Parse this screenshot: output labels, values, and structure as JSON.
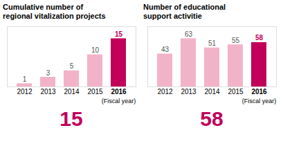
{
  "chart_data": [
    {
      "type": "bar",
      "title": "Cumulative number of\nregional vitalization projects",
      "categories": [
        "2012",
        "2013",
        "2014",
        "2015",
        "2016"
      ],
      "values": [
        1,
        3,
        5,
        10,
        15
      ],
      "colors": [
        "#f2b3c8",
        "#f2b3c8",
        "#f2b3c8",
        "#f2b3c8",
        "#c1005a"
      ],
      "ylim": [
        0,
        18.75
      ],
      "data_labels": true,
      "tick_labels": "x",
      "annotations": [
        "(Fiscal year)",
        "15"
      ]
    },
    {
      "type": "bar",
      "title": "Number of educational\nsupport activitie",
      "categories": [
        "2012",
        "2013",
        "2014",
        "2015",
        "2016"
      ],
      "values": [
        43,
        63,
        51,
        55,
        58
      ],
      "colors": [
        "#f2b3c8",
        "#f2b3c8",
        "#f2b3c8",
        "#f2b3c8",
        "#c1005a"
      ],
      "ylim": [
        0,
        78.75
      ],
      "data_labels": true,
      "tick_labels": "x",
      "annotations": [
        "(Fiscal year)",
        "58"
      ]
    }
  ]
}
